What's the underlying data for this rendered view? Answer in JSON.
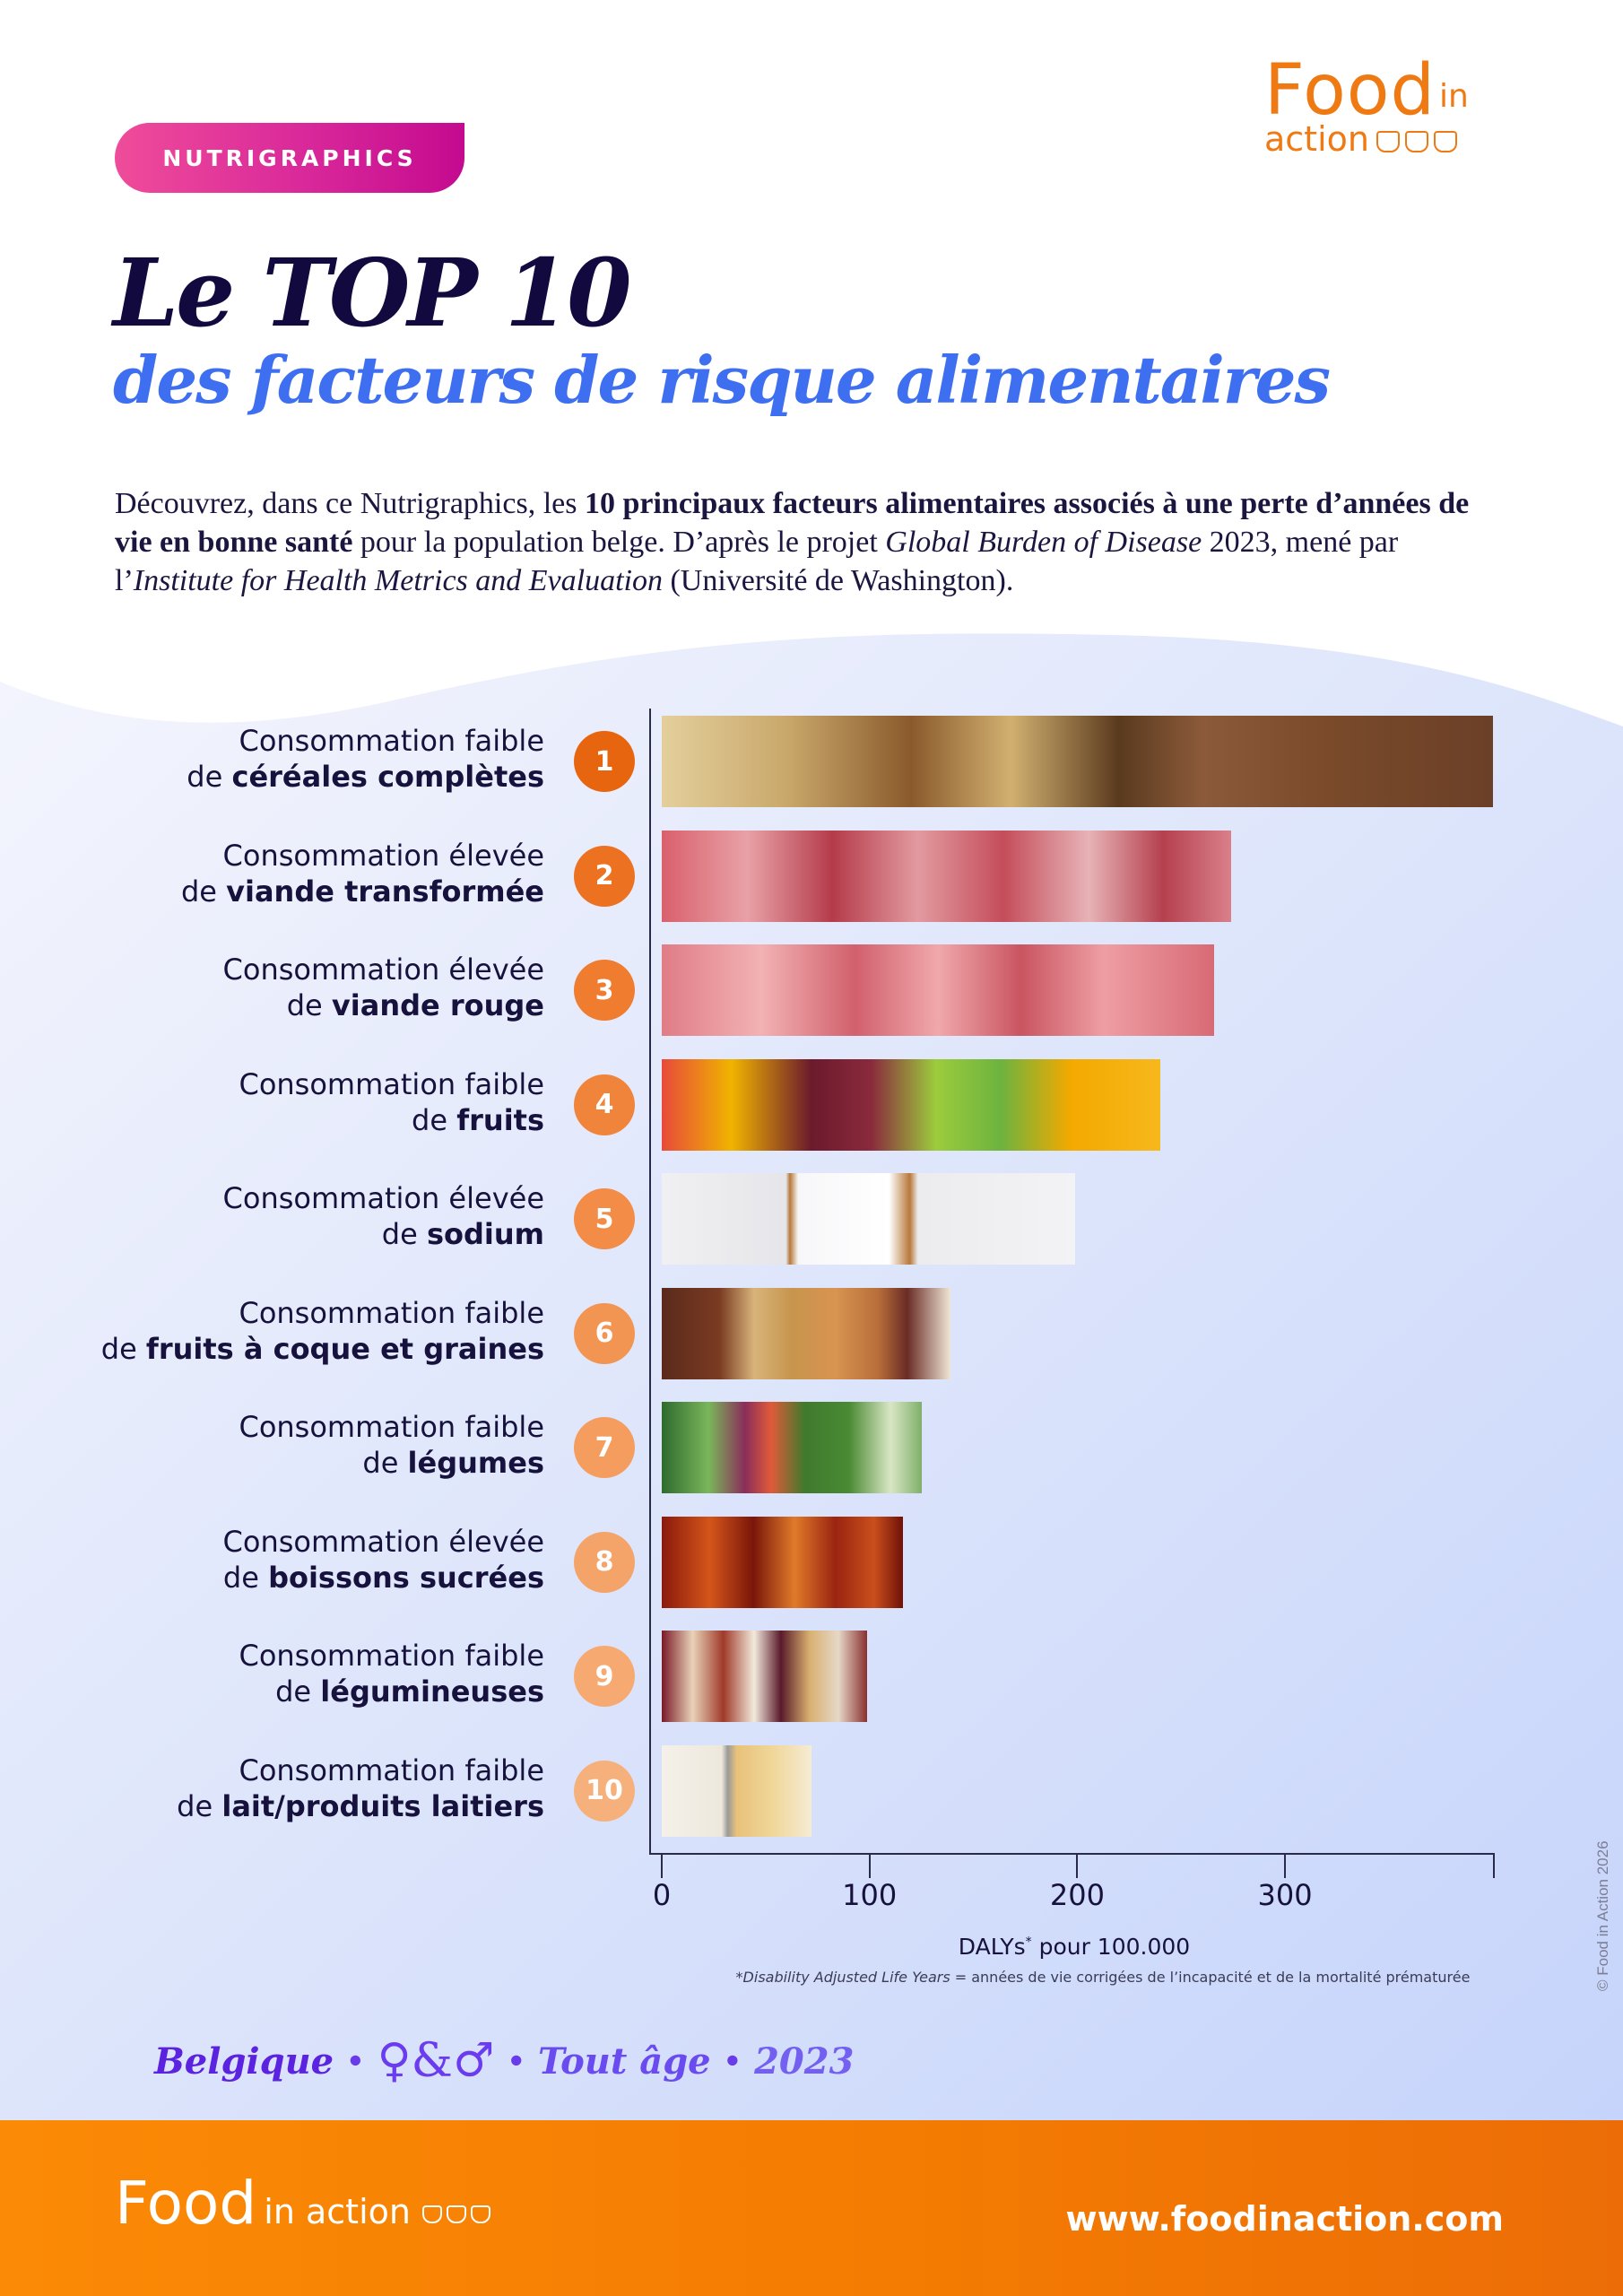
{
  "header": {
    "badge": "NUTRIGRAPHICS",
    "logo": {
      "food": "Food",
      "in": "in",
      "action": "action"
    },
    "title_line1": "Le TOP 10",
    "title_line2": "des facteurs de risque alimentaires"
  },
  "intro": {
    "p1": "Découvrez, dans ce Nutrigraphics, les ",
    "p1_bold": "10 principaux facteurs alimentaires associés à une perte d’années de vie en bonne santé",
    "p2": " pour la population belge. D’après le projet ",
    "p2_italic": "Global Burden of Disease",
    "p3": " 2023, mené par l’",
    "p3_italic": "Institute for Health Metrics and Evaluation",
    "p4": " (Université de Washington)."
  },
  "chart_data": {
    "type": "bar",
    "orientation": "horizontal",
    "title": "Le TOP 10 des facteurs de risque alimentaires",
    "xlabel": "DALYs* pour 100.000",
    "ylabel": "",
    "xlim": [
      0,
      400
    ],
    "xticks": [
      0,
      100,
      200,
      300
    ],
    "grid": false,
    "legend": null,
    "categories": [
      "Consommation faible de céréales complètes",
      "Consommation élevée de viande transformée",
      "Consommation élevée de viande rouge",
      "Consommation faible de fruits",
      "Consommation élevée de sodium",
      "Consommation faible de fruits à coque et graines",
      "Consommation faible de légumes",
      "Consommation élevée de boissons sucrées",
      "Consommation faible de légumineuses",
      "Consommation faible de lait/produits laitiers"
    ],
    "values": [
      400,
      274,
      266,
      240,
      199,
      139,
      125,
      116,
      99,
      72
    ],
    "annotations": [
      "*Disability Adjusted Life Years = années de vie corrigées de l’incapacité et de la mortalité prématurée"
    ]
  },
  "rows": [
    {
      "rank": "1",
      "line1": "Consommation faible",
      "pre": "de ",
      "bold": "céréales complètes",
      "value": 400,
      "color": "#e8650f",
      "image": "whole-grains-bread"
    },
    {
      "rank": "2",
      "line1": "Consommation élevée",
      "pre": "de ",
      "bold": "viande transformée",
      "value": 274,
      "color": "#ec7222",
      "image": "processed-meat"
    },
    {
      "rank": "3",
      "line1": "Consommation élevée",
      "pre": "de ",
      "bold": "viande rouge",
      "value": 266,
      "color": "#ef7c2f",
      "image": "red-meat"
    },
    {
      "rank": "4",
      "line1": "Consommation faible",
      "pre": "de ",
      "bold": "fruits",
      "value": 240,
      "color": "#f0843b",
      "image": "fruits"
    },
    {
      "rank": "5",
      "line1": "Consommation élevée",
      "pre": "de ",
      "bold": "sodium",
      "value": 199,
      "color": "#f28c47",
      "image": "salt"
    },
    {
      "rank": "6",
      "line1": "Consommation faible",
      "pre": "de ",
      "bold": "fruits à coque et graines",
      "value": 139,
      "color": "#f39552",
      "image": "nuts"
    },
    {
      "rank": "7",
      "line1": "Consommation faible",
      "pre": "de ",
      "bold": "légumes",
      "value": 125,
      "color": "#f49d5e",
      "image": "vegetables"
    },
    {
      "rank": "8",
      "line1": "Consommation élevée",
      "pre": "de ",
      "bold": "boissons sucrées",
      "value": 116,
      "color": "#f5a469",
      "image": "soda-ice"
    },
    {
      "rank": "9",
      "line1": "Consommation faible",
      "pre": "de ",
      "bold": "légumineuses",
      "value": 99,
      "color": "#f6aa72",
      "image": "beans"
    },
    {
      "rank": "10",
      "line1": "Consommation faible",
      "pre": "de ",
      "bold": "lait/produits laitiers",
      "value": 72,
      "color": "#f6b07c",
      "image": "dairy"
    }
  ],
  "axis": {
    "ticks": [
      {
        "label": "0",
        "value": 0
      },
      {
        "label": "100",
        "value": 100
      },
      {
        "label": "200",
        "value": 200
      },
      {
        "label": "300",
        "value": 300
      }
    ],
    "xlabel": "DALYs",
    "xlabel_sup": "*",
    "xlabel_rest": " pour 100.000",
    "footnote_star": "*",
    "footnote_italic": "Disability Adjusted Life Years",
    "footnote_rest": " = années de vie corrigées de l’incapacité et de la mortalité prématurée"
  },
  "meta": {
    "country": "Belgique",
    "sex": "♀&♂",
    "age": "Tout âge",
    "year": "2023",
    "separator": "•"
  },
  "copyright": "© Food in Action 2026",
  "footer": {
    "logo_food": "Food",
    "logo_rest": "in action",
    "url": "www.foodinaction.com"
  },
  "colors": {
    "badge_start": "#ef4c9a",
    "badge_end": "#c40a8f",
    "title_dark": "#12093f",
    "title_blue": "#3e6ff0",
    "brand_orange": "#ef7a14",
    "footer_orange": "#f47c02",
    "meta_purple": "#5b22e0"
  }
}
